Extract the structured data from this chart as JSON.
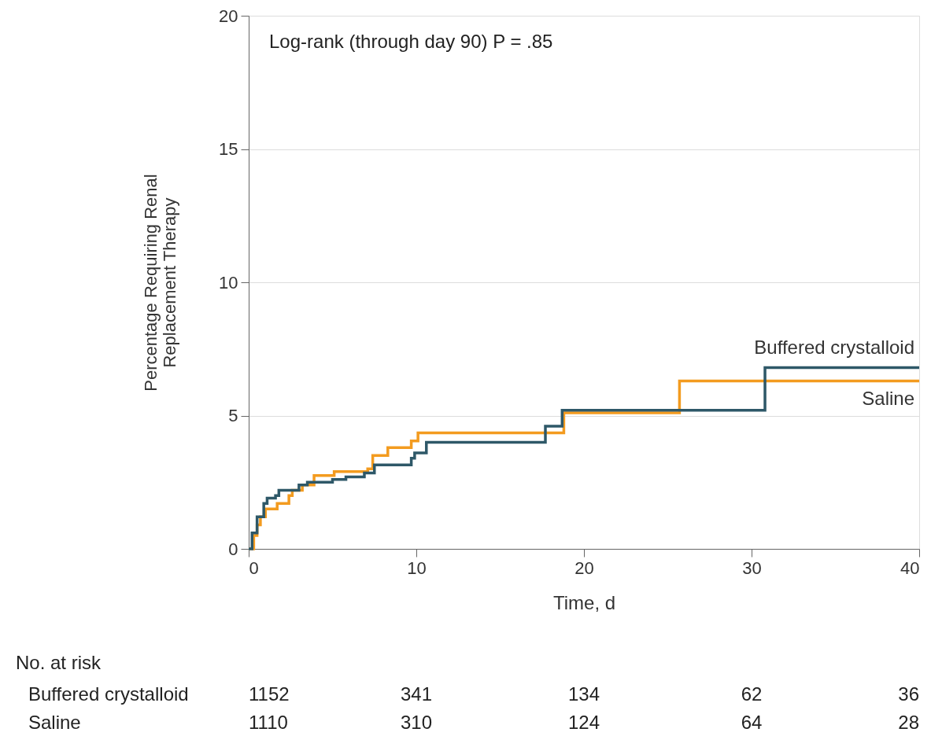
{
  "chart_data": {
    "type": "step",
    "xlabel": "Time, d",
    "ylabel": "Percentage Requiring Renal\nReplacement Therapy",
    "xlim": [
      0,
      40
    ],
    "ylim": [
      0,
      20
    ],
    "xticks": [
      0,
      10,
      20,
      30,
      40
    ],
    "yticks": [
      0,
      5,
      10,
      15,
      20
    ],
    "grid": "y",
    "legend": false,
    "line_style": "solid",
    "marker": "none",
    "series": [
      {
        "name": "Saline",
        "color": "#f39b1f",
        "x": [
          0,
          0.3,
          0.5,
          0.7,
          1.0,
          1.7,
          2.4,
          2.6,
          3.2,
          3.9,
          5.1,
          7.1,
          7.4,
          8.3,
          9.7,
          10.1,
          18.8,
          25.7,
          40
        ],
        "values": [
          0,
          0.5,
          0.9,
          1.2,
          1.5,
          1.7,
          2.0,
          2.2,
          2.4,
          2.75,
          2.9,
          3.0,
          3.5,
          3.8,
          4.05,
          4.35,
          5.1,
          6.3,
          6.3
        ]
      },
      {
        "name": "Buffered crystalloid",
        "color": "#2e5868",
        "x": [
          0,
          0.2,
          0.5,
          0.9,
          1.1,
          1.6,
          1.8,
          3.0,
          3.5,
          5.0,
          5.8,
          6.9,
          7.5,
          9.7,
          9.9,
          10.6,
          17.7,
          18.7,
          30.8,
          40
        ],
        "values": [
          0,
          0.6,
          1.2,
          1.7,
          1.9,
          2.0,
          2.2,
          2.4,
          2.5,
          2.6,
          2.7,
          2.85,
          3.15,
          3.4,
          3.6,
          4.0,
          4.6,
          5.2,
          6.8,
          6.8
        ]
      }
    ],
    "annotations": [
      "Log-rank (through day 90) P = .85",
      "No. at risk",
      "Buffered crystalloid",
      "1152",
      "341",
      "134",
      "62",
      "36",
      "Saline",
      "1110",
      "310",
      "124",
      "64",
      "28"
    ]
  }
}
